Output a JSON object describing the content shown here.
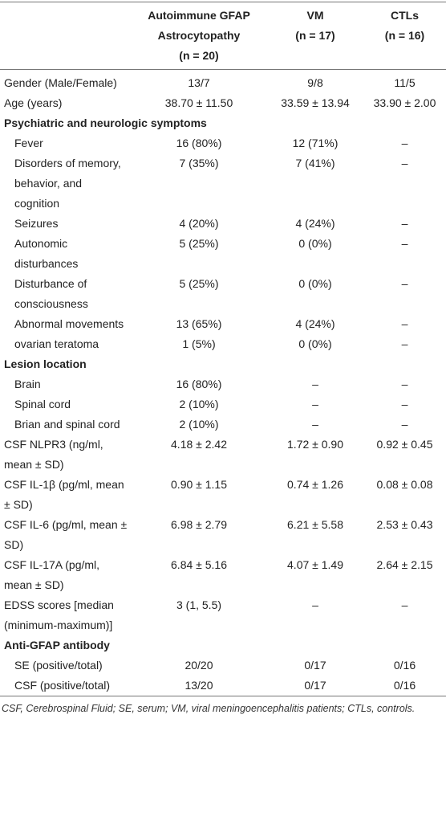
{
  "table": {
    "header": [
      "Autoimmune GFAP Astrocytopathy",
      "VM",
      "CTLs"
    ],
    "header_n": [
      "(n = 20)",
      "(n = 17)",
      "(n = 16)"
    ],
    "blocks": [
      {
        "rows": [
          {
            "label": "Gender (Male/Female)",
            "values": [
              "13/7",
              "9/8",
              "11/5"
            ]
          },
          {
            "label": "Age (years)",
            "values": [
              "38.70 ± 11.50",
              "33.59 ± 13.94",
              "33.90 ± 2.00"
            ]
          }
        ]
      },
      {
        "title": "Psychiatric and neurologic symptoms",
        "rows": [
          {
            "label": "Fever",
            "values": [
              "16 (80%)",
              "12 (71%)",
              "–"
            ]
          },
          {
            "label": "Disorders of memory, behavior, and cognition",
            "values": [
              "7 (35%)",
              "7 (41%)",
              "–"
            ]
          },
          {
            "label": "Seizures",
            "values": [
              "4 (20%)",
              "4 (24%)",
              "–"
            ]
          },
          {
            "label": "Autonomic disturbances",
            "values": [
              "5 (25%)",
              "0 (0%)",
              "–"
            ]
          },
          {
            "label": "Disturbance of consciousness",
            "values": [
              "5 (25%)",
              "0 (0%)",
              "–"
            ]
          },
          {
            "label": "Abnormal movements",
            "values": [
              "13 (65%)",
              "4 (24%)",
              "–"
            ]
          },
          {
            "label": "ovarian teratoma",
            "values": [
              "1 (5%)",
              "0 (0%)",
              "–"
            ]
          }
        ]
      },
      {
        "title": "Lesion location",
        "rows": [
          {
            "label": "Brain",
            "values": [
              "16 (80%)",
              "–",
              "–"
            ]
          },
          {
            "label": "Spinal cord",
            "values": [
              "2 (10%)",
              "–",
              "–"
            ]
          },
          {
            "label": "Brian and spinal cord",
            "values": [
              "2 (10%)",
              "–",
              "–"
            ]
          }
        ]
      },
      {
        "rows": [
          {
            "label": "CSF NLPR3 (ng/ml, mean ± SD)",
            "values": [
              "4.18 ± 2.42",
              "1.72 ± 0.90",
              "0.92 ± 0.45"
            ]
          },
          {
            "label": "CSF IL-1β (pg/ml, mean ± SD)",
            "values": [
              "0.90 ± 1.15",
              "0.74 ± 1.26",
              "0.08 ± 0.08"
            ]
          },
          {
            "label": "CSF IL-6 (pg/ml, mean ± SD)",
            "values": [
              "6.98 ± 2.79",
              "6.21 ± 5.58",
              "2.53 ± 0.43"
            ]
          },
          {
            "label": "CSF IL-17A (pg/ml, mean ± SD)",
            "values": [
              "6.84 ± 5.16",
              "4.07 ± 1.49",
              "2.64 ± 2.15"
            ]
          },
          {
            "label": "EDSS scores [median (minimum-maximum)]",
            "values": [
              "3 (1, 5.5)",
              "–",
              "–"
            ]
          }
        ]
      },
      {
        "title": "Anti-GFAP antibody",
        "rows": [
          {
            "label": "SE (positive/total)",
            "values": [
              "20/20",
              "0/17",
              "0/16"
            ]
          },
          {
            "label": "CSF (positive/total)",
            "values": [
              "13/20",
              "0/17",
              "0/16"
            ]
          }
        ]
      }
    ],
    "footnote": "CSF, Cerebrospinal Fluid; SE, serum; VM, viral meningoencephalitis patients; CTLs, controls."
  }
}
